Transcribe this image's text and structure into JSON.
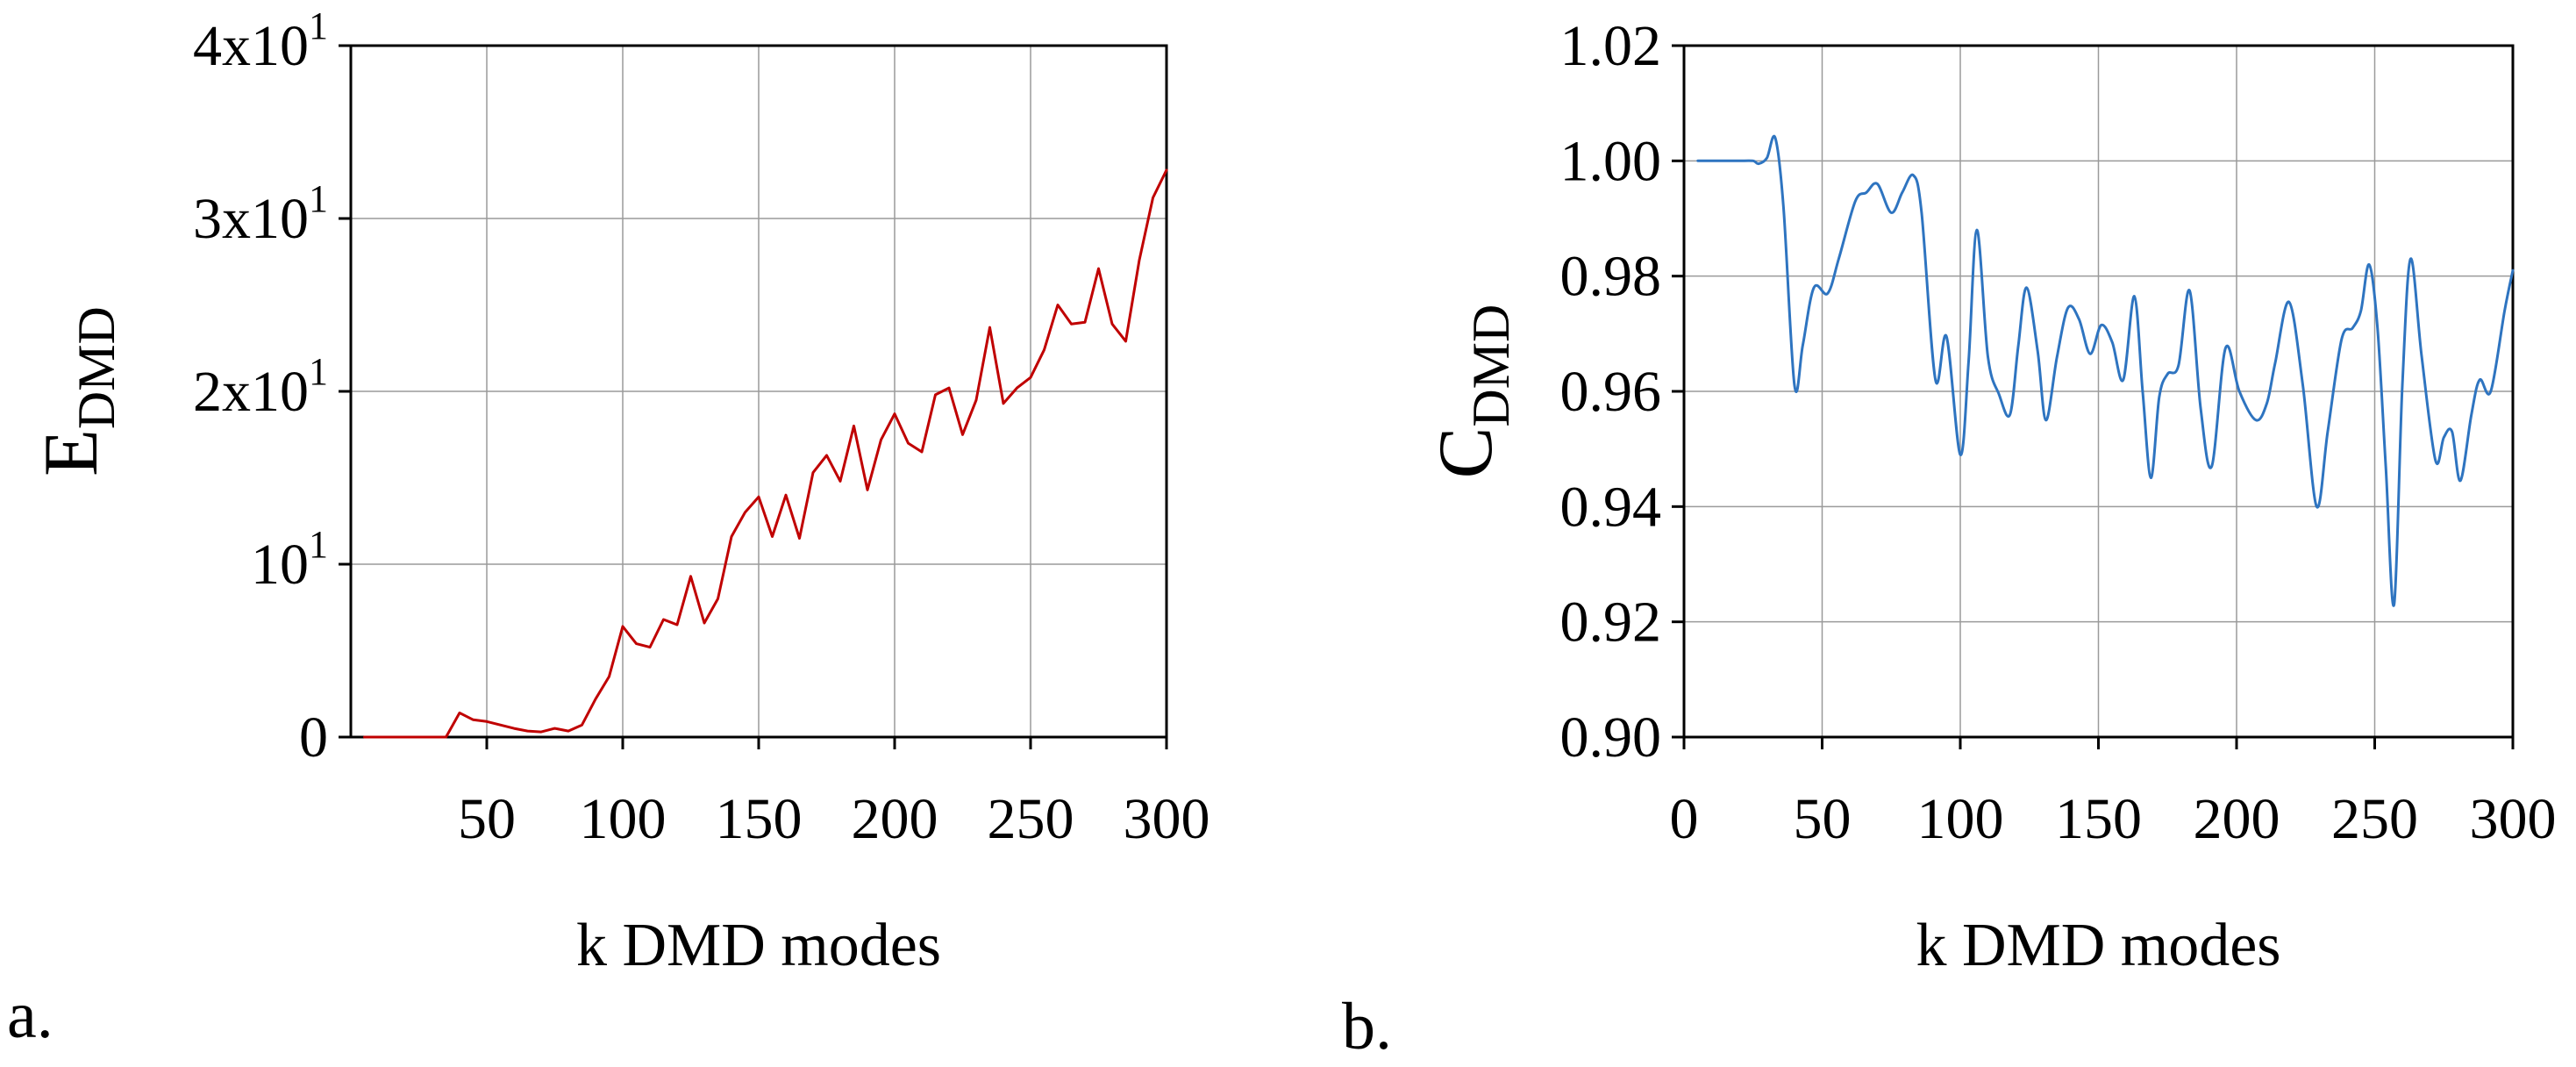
{
  "figure": {
    "panel_a_label": "a.",
    "panel_b_label": "b."
  },
  "chart_data": [
    {
      "type": "line",
      "panel": "a",
      "title": "",
      "xlabel": "k DMD modes",
      "ylabel_main": "E",
      "ylabel_sub": "DMD",
      "xlim": [
        0,
        300
      ],
      "ylim": [
        0,
        40
      ],
      "x_ticks": [
        50,
        100,
        150,
        200,
        250,
        300
      ],
      "x_tick_labels": [
        "50",
        "100",
        "150",
        "200",
        "250",
        "300"
      ],
      "y_ticks": [
        0,
        10,
        20,
        30,
        40
      ],
      "y_tick_labels": [
        {
          "base": "0",
          "exp": ""
        },
        {
          "base": "10",
          "exp": "1"
        },
        {
          "base": "2x10",
          "exp": "1"
        },
        {
          "base": "3x10",
          "exp": "1"
        },
        {
          "base": "4x10",
          "exp": "1"
        }
      ],
      "grid": true,
      "line_color": "#c00000",
      "series": [
        {
          "name": "E_DMD",
          "x": [
            5,
            10,
            15,
            20,
            25,
            30,
            35,
            40,
            45,
            50,
            55,
            60,
            65,
            70,
            75,
            80,
            85,
            90,
            95,
            100,
            105,
            110,
            115,
            120,
            125,
            130,
            135,
            140,
            145,
            150,
            155,
            160,
            165,
            170,
            175,
            180,
            185,
            190,
            195,
            200,
            205,
            210,
            215,
            220,
            225,
            230,
            235,
            240,
            245,
            250,
            255,
            260,
            265,
            270,
            275,
            280,
            285,
            290,
            295,
            300
          ],
          "values": [
            0.0,
            0.0,
            0.0,
            0.0,
            0.0,
            0.0,
            0.0,
            1.4,
            1.0,
            0.9,
            0.7,
            0.5,
            0.35,
            0.3,
            0.5,
            0.35,
            0.7,
            2.2,
            3.5,
            6.4,
            5.4,
            5.2,
            6.8,
            6.5,
            9.3,
            6.6,
            8.0,
            11.6,
            13.0,
            13.9,
            11.6,
            14.0,
            11.5,
            15.3,
            16.3,
            14.8,
            18.0,
            14.3,
            17.2,
            18.7,
            17.0,
            16.5,
            19.8,
            20.2,
            17.5,
            19.5,
            23.7,
            19.3,
            20.2,
            20.8,
            22.4,
            25.0,
            23.9,
            24.0,
            27.1,
            23.9,
            22.9,
            27.6,
            31.2,
            32.8
          ]
        }
      ]
    },
    {
      "type": "line",
      "panel": "b",
      "title": "",
      "xlabel": "k DMD modes",
      "ylabel_main": "C",
      "ylabel_sub": "DMD",
      "xlim": [
        0,
        300
      ],
      "ylim": [
        0.9,
        1.02
      ],
      "x_ticks": [
        0,
        50,
        100,
        150,
        200,
        250,
        300
      ],
      "x_tick_labels": [
        "0",
        "50",
        "100",
        "150",
        "200",
        "250",
        "300"
      ],
      "y_ticks": [
        0.9,
        0.92,
        0.94,
        0.96,
        0.98,
        1.0,
        1.02
      ],
      "y_tick_labels": [
        "0.90",
        "0.92",
        "0.94",
        "0.96",
        "0.98",
        "1.00",
        "1.02"
      ],
      "grid": true,
      "line_color": "#2e74c0",
      "series": [
        {
          "name": "C_DMD",
          "x": [
            5,
            10,
            15,
            20,
            25,
            27,
            30,
            33,
            36,
            40,
            43,
            47,
            52,
            56,
            62,
            66,
            70,
            75,
            79,
            83,
            86,
            91,
            95,
            100,
            103,
            106,
            110,
            114,
            118,
            121,
            124,
            128,
            131,
            135,
            139,
            143,
            147,
            151,
            155,
            159,
            163,
            166,
            169,
            172,
            175,
            179,
            183,
            187,
            191,
            196,
            201,
            207,
            211,
            214,
            219,
            224,
            229,
            233,
            238,
            242,
            245,
            248,
            251,
            254,
            257,
            260,
            263,
            267,
            272,
            275,
            278,
            281,
            285,
            288,
            292,
            297,
            300
          ],
          "values": [
            1.0,
            1.0,
            1.0,
            1.0,
            1.0,
            0.9995,
            1.0005,
            1.004,
            0.992,
            0.961,
            0.968,
            0.978,
            0.977,
            0.983,
            0.993,
            0.9945,
            0.996,
            0.991,
            0.9945,
            0.9975,
            0.991,
            0.962,
            0.9695,
            0.949,
            0.965,
            0.988,
            0.966,
            0.9595,
            0.956,
            0.968,
            0.978,
            0.967,
            0.955,
            0.966,
            0.9745,
            0.9725,
            0.9665,
            0.9715,
            0.9685,
            0.962,
            0.9765,
            0.96,
            0.945,
            0.959,
            0.963,
            0.9645,
            0.9775,
            0.957,
            0.947,
            0.9675,
            0.96,
            0.955,
            0.958,
            0.965,
            0.9755,
            0.961,
            0.94,
            0.953,
            0.969,
            0.971,
            0.974,
            0.982,
            0.971,
            0.947,
            0.923,
            0.961,
            0.983,
            0.966,
            0.948,
            0.952,
            0.953,
            0.9445,
            0.956,
            0.962,
            0.96,
            0.974,
            0.981
          ]
        }
      ]
    }
  ]
}
